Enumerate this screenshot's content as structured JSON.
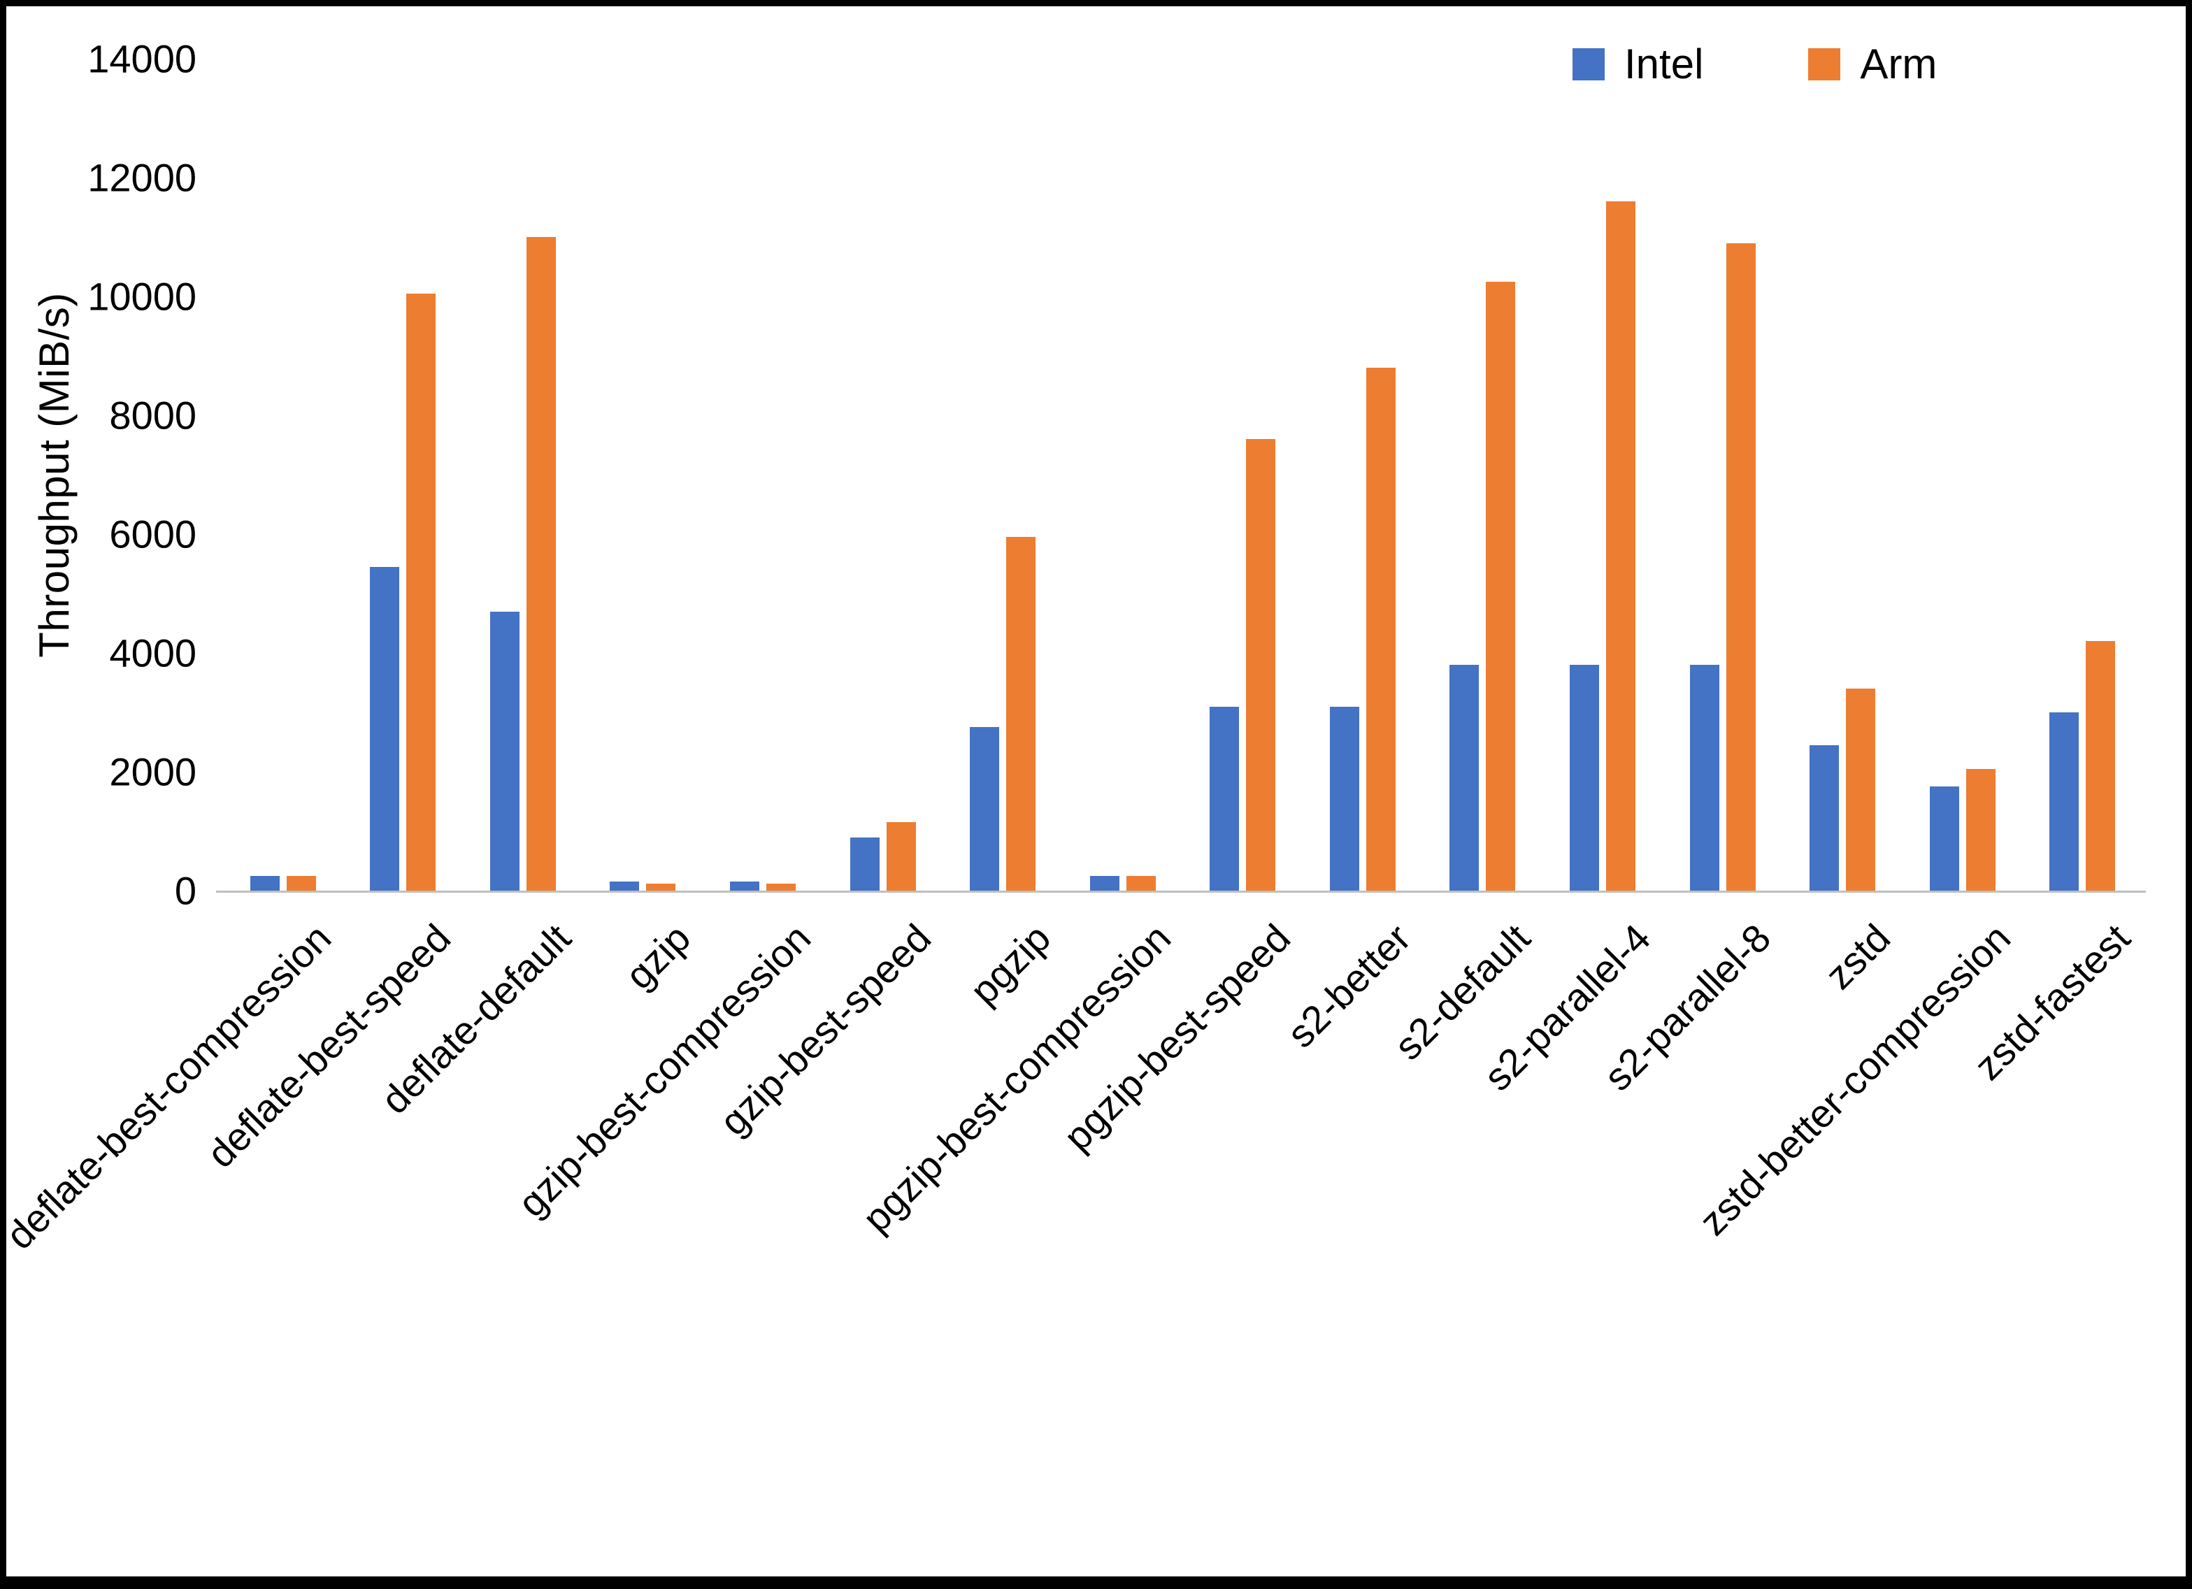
{
  "chart_data": {
    "type": "bar",
    "title": "",
    "xlabel": "",
    "ylabel": "Throughput (MiB/s)",
    "ylim": [
      0,
      14000
    ],
    "ytick_step": 2000,
    "grid": false,
    "legend_position": "top-right",
    "colors": [
      "#4472C4",
      "#ED7D31"
    ],
    "categories": [
      "deflate-best-compression",
      "deflate-best-speed",
      "deflate-default",
      "gzip",
      "gzip-best-compression",
      "gzip-best-speed",
      "pgzip",
      "pgzip-best-compression",
      "pgzip-best-speed",
      "s2-better",
      "s2-default",
      "s2-parallel-4",
      "s2-parallel-8",
      "zstd",
      "zstd-better-compression",
      "zstd-fastest"
    ],
    "series": [
      {
        "name": "Intel",
        "values": [
          250,
          5450,
          4700,
          150,
          150,
          900,
          2750,
          250,
          3100,
          3100,
          3800,
          3800,
          3800,
          2450,
          1750,
          3000
        ]
      },
      {
        "name": "Arm",
        "values": [
          250,
          10050,
          11000,
          120,
          120,
          1150,
          5950,
          250,
          7600,
          8800,
          10250,
          11600,
          10900,
          3400,
          2050,
          4200
        ]
      }
    ]
  }
}
